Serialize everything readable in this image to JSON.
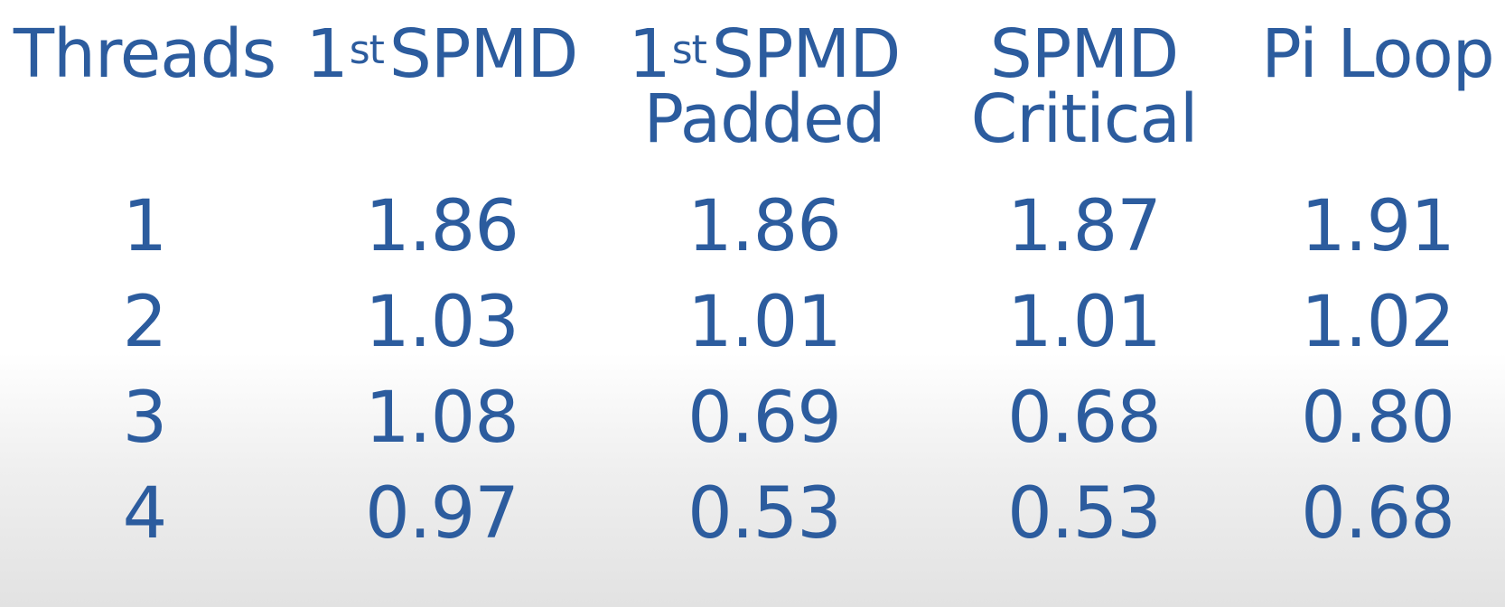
{
  "table": {
    "headers": [
      {
        "ordinal": "",
        "superscript": "",
        "line1": "Threads",
        "line2": ""
      },
      {
        "ordinal": "1",
        "superscript": "st",
        "line1": "SPMD",
        "line2": ""
      },
      {
        "ordinal": "1",
        "superscript": "st",
        "line1": "SPMD",
        "line2": "Padded"
      },
      {
        "ordinal": "",
        "superscript": "",
        "line1": "SPMD",
        "line2": "Critical"
      },
      {
        "ordinal": "",
        "superscript": "",
        "line1": "Pi Loop",
        "line2": ""
      }
    ],
    "rows": [
      [
        "1",
        "1.86",
        "1.86",
        "1.87",
        "1.91"
      ],
      [
        "2",
        "1.03",
        "1.01",
        "1.01",
        "1.02"
      ],
      [
        "3",
        "1.08",
        "0.69",
        "0.68",
        "0.80"
      ],
      [
        "4",
        "0.97",
        "0.53",
        "0.53",
        "0.68"
      ]
    ]
  },
  "colors": {
    "text": "#2c5c9e",
    "background_top": "#ffffff",
    "background_bottom": "#e2e2e2"
  }
}
